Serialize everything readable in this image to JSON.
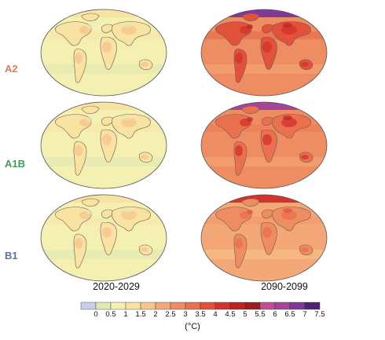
{
  "rows": [
    {
      "label": "A2",
      "color": "#e07a5f"
    },
    {
      "label": "A1B",
      "color": "#3f9a5b"
    },
    {
      "label": "B1",
      "color": "#5a72a8"
    }
  ],
  "columns": [
    "2020-2029",
    "2090-2099"
  ],
  "colorbar": {
    "ticks": [
      "0",
      "0.5",
      "1",
      "1.5",
      "2",
      "2.5",
      "3",
      "3.5",
      "4",
      "4.5",
      "5",
      "5.5",
      "6",
      "6.5",
      "7",
      "7.5"
    ],
    "colors": [
      "#c7cfe6",
      "#dfe9b4",
      "#f4f0b2",
      "#f8e3a3",
      "#f7c48d",
      "#f4a877",
      "#ef8d62",
      "#ea714f",
      "#e2513c",
      "#d4332c",
      "#bb2422",
      "#9c1e1e",
      "#c04d8e",
      "#a3459a",
      "#7d3a98",
      "#4d2574"
    ],
    "unit": "(°C)"
  }
}
